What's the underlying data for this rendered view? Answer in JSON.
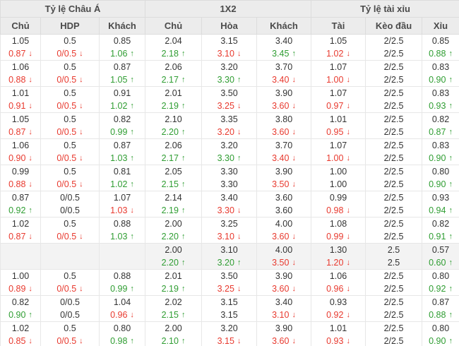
{
  "colors": {
    "up": "#2f9d32",
    "down": "#e8392e",
    "neutral": "#333333",
    "header_bg": "#ececec",
    "highlight_row_bg": "#f3f3f3"
  },
  "header": {
    "groups": [
      {
        "label": "Tỷ lệ Châu Á",
        "span": 3
      },
      {
        "label": "1X2",
        "span": 3
      },
      {
        "label": "Tỷ lệ tài xỉu",
        "span": 3
      }
    ],
    "columns": [
      "Chủ",
      "HDP",
      "Khách",
      "Chủ",
      "Hòa",
      "Khách",
      "Tài",
      "Kèo đầu",
      "Xỉu"
    ],
    "column_keys": [
      "asian-home",
      "asian-hdp",
      "asian-away",
      "1x2-home",
      "1x2-draw",
      "1x2-away",
      "ou-over",
      "ou-line",
      "ou-under"
    ]
  },
  "rows": [
    {
      "highlight": false,
      "cells": [
        {
          "top": "1.05",
          "bottom": "0.87",
          "trend": "down"
        },
        {
          "top": "0.5",
          "bottom": "0/0.5",
          "trend": "down"
        },
        {
          "top": "0.85",
          "bottom": "1.06",
          "trend": "up"
        },
        {
          "top": "2.04",
          "bottom": "2.18",
          "trend": "up"
        },
        {
          "top": "3.15",
          "bottom": "3.10",
          "trend": "down"
        },
        {
          "top": "3.40",
          "bottom": "3.45",
          "trend": "up"
        },
        {
          "top": "1.05",
          "bottom": "1.02",
          "trend": "down"
        },
        {
          "top": "2/2.5",
          "bottom": "2/2.5",
          "trend": "none"
        },
        {
          "top": "0.85",
          "bottom": "0.88",
          "trend": "up"
        }
      ]
    },
    {
      "highlight": false,
      "cells": [
        {
          "top": "1.06",
          "bottom": "0.88",
          "trend": "down"
        },
        {
          "top": "0.5",
          "bottom": "0/0.5",
          "trend": "down"
        },
        {
          "top": "0.87",
          "bottom": "1.05",
          "trend": "up"
        },
        {
          "top": "2.06",
          "bottom": "2.17",
          "trend": "up"
        },
        {
          "top": "3.20",
          "bottom": "3.30",
          "trend": "up"
        },
        {
          "top": "3.70",
          "bottom": "3.40",
          "trend": "down"
        },
        {
          "top": "1.07",
          "bottom": "1.00",
          "trend": "down"
        },
        {
          "top": "2/2.5",
          "bottom": "2/2.5",
          "trend": "none"
        },
        {
          "top": "0.83",
          "bottom": "0.90",
          "trend": "up"
        }
      ]
    },
    {
      "highlight": false,
      "cells": [
        {
          "top": "1.01",
          "bottom": "0.91",
          "trend": "down"
        },
        {
          "top": "0.5",
          "bottom": "0/0.5",
          "trend": "down"
        },
        {
          "top": "0.91",
          "bottom": "1.02",
          "trend": "up"
        },
        {
          "top": "2.01",
          "bottom": "2.19",
          "trend": "up"
        },
        {
          "top": "3.50",
          "bottom": "3.25",
          "trend": "down"
        },
        {
          "top": "3.90",
          "bottom": "3.60",
          "trend": "down"
        },
        {
          "top": "1.07",
          "bottom": "0.97",
          "trend": "down"
        },
        {
          "top": "2/2.5",
          "bottom": "2/2.5",
          "trend": "none"
        },
        {
          "top": "0.83",
          "bottom": "0.93",
          "trend": "up"
        }
      ]
    },
    {
      "highlight": false,
      "cells": [
        {
          "top": "1.05",
          "bottom": "0.87",
          "trend": "down"
        },
        {
          "top": "0.5",
          "bottom": "0/0.5",
          "trend": "down"
        },
        {
          "top": "0.82",
          "bottom": "0.99",
          "trend": "up"
        },
        {
          "top": "2.10",
          "bottom": "2.20",
          "trend": "up"
        },
        {
          "top": "3.35",
          "bottom": "3.20",
          "trend": "down"
        },
        {
          "top": "3.80",
          "bottom": "3.60",
          "trend": "down"
        },
        {
          "top": "1.01",
          "bottom": "0.95",
          "trend": "down"
        },
        {
          "top": "2/2.5",
          "bottom": "2/2.5",
          "trend": "none"
        },
        {
          "top": "0.82",
          "bottom": "0.87",
          "trend": "up"
        }
      ]
    },
    {
      "highlight": false,
      "cells": [
        {
          "top": "1.06",
          "bottom": "0.90",
          "trend": "down"
        },
        {
          "top": "0.5",
          "bottom": "0/0.5",
          "trend": "down"
        },
        {
          "top": "0.87",
          "bottom": "1.03",
          "trend": "up"
        },
        {
          "top": "2.06",
          "bottom": "2.17",
          "trend": "up"
        },
        {
          "top": "3.20",
          "bottom": "3.30",
          "trend": "up"
        },
        {
          "top": "3.70",
          "bottom": "3.40",
          "trend": "down"
        },
        {
          "top": "1.07",
          "bottom": "1.00",
          "trend": "down"
        },
        {
          "top": "2/2.5",
          "bottom": "2/2.5",
          "trend": "none"
        },
        {
          "top": "0.83",
          "bottom": "0.90",
          "trend": "up"
        }
      ]
    },
    {
      "highlight": false,
      "cells": [
        {
          "top": "0.99",
          "bottom": "0.88",
          "trend": "down"
        },
        {
          "top": "0.5",
          "bottom": "0/0.5",
          "trend": "down"
        },
        {
          "top": "0.81",
          "bottom": "1.02",
          "trend": "up"
        },
        {
          "top": "2.05",
          "bottom": "2.15",
          "trend": "up"
        },
        {
          "top": "3.30",
          "bottom": "3.30",
          "trend": "none"
        },
        {
          "top": "3.90",
          "bottom": "3.50",
          "trend": "down"
        },
        {
          "top": "1.00",
          "bottom": "1.00",
          "trend": "none"
        },
        {
          "top": "2/2.5",
          "bottom": "2/2.5",
          "trend": "none"
        },
        {
          "top": "0.80",
          "bottom": "0.90",
          "trend": "up"
        }
      ]
    },
    {
      "highlight": false,
      "cells": [
        {
          "top": "0.87",
          "bottom": "0.92",
          "trend": "up"
        },
        {
          "top": "0/0.5",
          "bottom": "0/0.5",
          "trend": "none"
        },
        {
          "top": "1.07",
          "bottom": "1.03",
          "trend": "down"
        },
        {
          "top": "2.14",
          "bottom": "2.19",
          "trend": "up"
        },
        {
          "top": "3.40",
          "bottom": "3.30",
          "trend": "down"
        },
        {
          "top": "3.60",
          "bottom": "3.60",
          "trend": "none"
        },
        {
          "top": "0.99",
          "bottom": "0.98",
          "trend": "down"
        },
        {
          "top": "2/2.5",
          "bottom": "2/2.5",
          "trend": "none"
        },
        {
          "top": "0.93",
          "bottom": "0.94",
          "trend": "up"
        }
      ]
    },
    {
      "highlight": false,
      "cells": [
        {
          "top": "1.02",
          "bottom": "0.87",
          "trend": "down"
        },
        {
          "top": "0.5",
          "bottom": "0/0.5",
          "trend": "down"
        },
        {
          "top": "0.88",
          "bottom": "1.03",
          "trend": "up"
        },
        {
          "top": "2.00",
          "bottom": "2.20",
          "trend": "up"
        },
        {
          "top": "3.25",
          "bottom": "3.10",
          "trend": "down"
        },
        {
          "top": "4.00",
          "bottom": "3.60",
          "trend": "down"
        },
        {
          "top": "1.08",
          "bottom": "0.99",
          "trend": "down"
        },
        {
          "top": "2/2.5",
          "bottom": "2/2.5",
          "trend": "none"
        },
        {
          "top": "0.82",
          "bottom": "0.91",
          "trend": "up"
        }
      ]
    },
    {
      "highlight": true,
      "cells": [
        {
          "top": "",
          "bottom": "",
          "trend": "none"
        },
        {
          "top": "",
          "bottom": "",
          "trend": "none"
        },
        {
          "top": "",
          "bottom": "",
          "trend": "none"
        },
        {
          "top": "2.00",
          "bottom": "2.20",
          "trend": "up"
        },
        {
          "top": "3.10",
          "bottom": "3.20",
          "trend": "up"
        },
        {
          "top": "4.00",
          "bottom": "3.50",
          "trend": "down"
        },
        {
          "top": "1.30",
          "bottom": "1.20",
          "trend": "down"
        },
        {
          "top": "2.5",
          "bottom": "2.5",
          "trend": "none"
        },
        {
          "top": "0.57",
          "bottom": "0.60",
          "trend": "up"
        }
      ]
    },
    {
      "highlight": false,
      "cells": [
        {
          "top": "1.00",
          "bottom": "0.89",
          "trend": "down"
        },
        {
          "top": "0.5",
          "bottom": "0/0.5",
          "trend": "down"
        },
        {
          "top": "0.88",
          "bottom": "0.99",
          "trend": "up"
        },
        {
          "top": "2.01",
          "bottom": "2.19",
          "trend": "up"
        },
        {
          "top": "3.50",
          "bottom": "3.25",
          "trend": "down"
        },
        {
          "top": "3.90",
          "bottom": "3.60",
          "trend": "down"
        },
        {
          "top": "1.06",
          "bottom": "0.96",
          "trend": "down"
        },
        {
          "top": "2/2.5",
          "bottom": "2/2.5",
          "trend": "none"
        },
        {
          "top": "0.80",
          "bottom": "0.92",
          "trend": "up"
        }
      ]
    },
    {
      "highlight": false,
      "cells": [
        {
          "top": "0.82",
          "bottom": "0.90",
          "trend": "up"
        },
        {
          "top": "0/0.5",
          "bottom": "0/0.5",
          "trend": "none"
        },
        {
          "top": "1.04",
          "bottom": "0.96",
          "trend": "down"
        },
        {
          "top": "2.02",
          "bottom": "2.15",
          "trend": "up"
        },
        {
          "top": "3.15",
          "bottom": "3.15",
          "trend": "none"
        },
        {
          "top": "3.40",
          "bottom": "3.10",
          "trend": "down"
        },
        {
          "top": "0.93",
          "bottom": "0.92",
          "trend": "down"
        },
        {
          "top": "2/2.5",
          "bottom": "2/2.5",
          "trend": "none"
        },
        {
          "top": "0.87",
          "bottom": "0.88",
          "trend": "up"
        }
      ]
    },
    {
      "highlight": false,
      "cells": [
        {
          "top": "1.02",
          "bottom": "0.85",
          "trend": "down"
        },
        {
          "top": "0.5",
          "bottom": "0/0.5",
          "trend": "down"
        },
        {
          "top": "0.80",
          "bottom": "0.98",
          "trend": "up"
        },
        {
          "top": "2.00",
          "bottom": "2.10",
          "trend": "up"
        },
        {
          "top": "3.20",
          "bottom": "3.15",
          "trend": "down"
        },
        {
          "top": "3.90",
          "bottom": "3.60",
          "trend": "down"
        },
        {
          "top": "1.01",
          "bottom": "0.93",
          "trend": "down"
        },
        {
          "top": "2/2.5",
          "bottom": "2/2.5",
          "trend": "none"
        },
        {
          "top": "0.80",
          "bottom": "0.90",
          "trend": "up"
        }
      ]
    }
  ],
  "arrows": {
    "up": "↑",
    "down": "↓"
  }
}
